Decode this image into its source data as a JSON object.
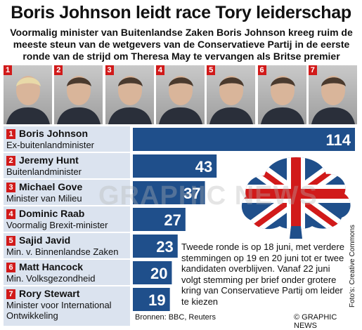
{
  "header": {
    "title": "Boris Johnson leidt race Tory leiderschap",
    "subtitle": "Voormalig minister van Buitenlandse Zaken Boris Johnson kreeg ruim de meeste steun van de wetgevers van de Conservatieve Partij in de eerste ronde van de strijd om Theresa May te vervangen als Britse premier"
  },
  "colors": {
    "bar": "#1f4f8b",
    "badge": "#d11a1a",
    "row_bg": "#dbe3ef",
    "logo_blue": "#1f4f8b",
    "logo_red": "#d11a1a"
  },
  "chart_data": {
    "type": "bar",
    "orientation": "horizontal",
    "categories": [
      "Boris Johnson",
      "Jeremy Hunt",
      "Michael Gove",
      "Dominic Raab",
      "Sajid Javid",
      "Matt Hancock",
      "Rory Stewart"
    ],
    "ranks": [
      "1",
      "2",
      "3",
      "4",
      "5",
      "6",
      "7"
    ],
    "roles": [
      "Ex-buitenlandminister",
      "Buitenlandminister",
      "Minister van Milieu",
      "Voormalig Brexit-minister",
      "Min. v. Binnenlandse Zaken",
      "Min. Volksgezondheid",
      "Minister voor International Ontwikkeling"
    ],
    "values": [
      114,
      43,
      37,
      27,
      23,
      20,
      19
    ],
    "xlim": [
      0,
      114
    ],
    "grid": false,
    "legend": "none",
    "data_labels": true
  },
  "note": "Tweede ronde is op 18 juni, met verdere stemmingen op 19 en 20 juni tot er twee kandidaten overblijven. Vanaf 22 juni volgt stemming per brief onder grotere kring van Conservatieve Partij om leider te kiezen",
  "footer": {
    "sources": "Bronnen: BBC, Reuters",
    "copyright": "© GRAPHIC NEWS",
    "photo_credit": "Foto's: Creative Commons",
    "watermark": "GRAPHIC NEWS"
  },
  "icons": {
    "logo": "conservative-tree-union-jack-icon",
    "photo": "person-silhouette-icon"
  }
}
